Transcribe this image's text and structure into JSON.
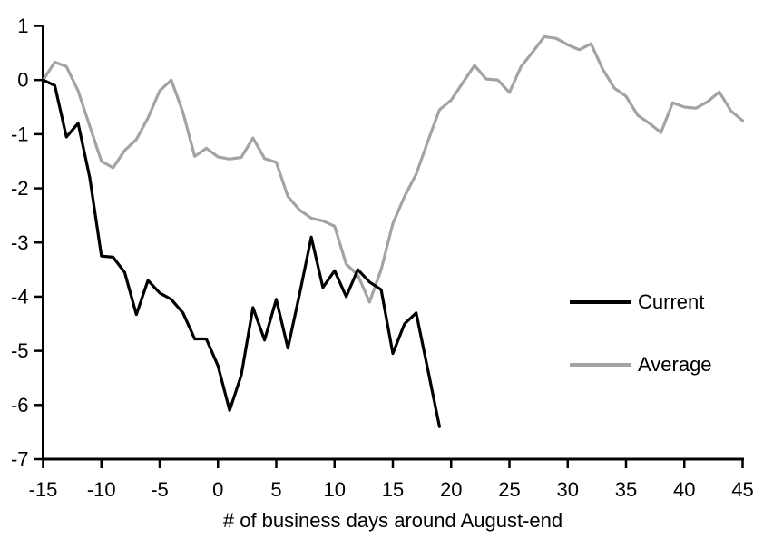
{
  "chart_data": {
    "type": "line",
    "title": "",
    "xlabel": "# of business days around August-end",
    "ylabel": "",
    "xlim": [
      -15,
      45
    ],
    "ylim": [
      -7,
      1
    ],
    "xticks": [
      -15,
      -10,
      -5,
      0,
      5,
      10,
      15,
      20,
      25,
      30,
      35,
      40,
      45
    ],
    "yticks": [
      1,
      0,
      -1,
      -2,
      -3,
      -4,
      -5,
      -6,
      -7
    ],
    "grid": false,
    "legend_position": "middle-right",
    "axis_color": "#000000",
    "background_color": "#ffffff",
    "series": [
      {
        "name": "Current",
        "color": "#000000",
        "x": [
          -15,
          -14,
          -13,
          -12,
          -11,
          -10,
          -9,
          -8,
          -7,
          -6,
          -5,
          -4,
          -3,
          -2,
          -1,
          0,
          1,
          2,
          3,
          4,
          5,
          6,
          7,
          8,
          9,
          10,
          11,
          12,
          13,
          14,
          15,
          16,
          17,
          18,
          19
        ],
        "values": [
          0,
          -0.1,
          -1.05,
          -0.8,
          -1.8,
          -3.25,
          -3.27,
          -3.55,
          -4.33,
          -3.7,
          -3.93,
          -4.05,
          -4.3,
          -4.78,
          -4.78,
          -5.28,
          -6.1,
          -5.45,
          -4.2,
          -4.8,
          -4.05,
          -4.95,
          -3.95,
          -2.9,
          -3.83,
          -3.52,
          -4.0,
          -3.5,
          -3.73,
          -3.87,
          -5.05,
          -4.5,
          -4.3,
          -5.35,
          -6.4
        ]
      },
      {
        "name": "Average",
        "color": "#a3a3a3",
        "x": [
          -15,
          -14,
          -13,
          -12,
          -11,
          -10,
          -9,
          -8,
          -7,
          -6,
          -5,
          -4,
          -3,
          -2,
          -1,
          0,
          1,
          2,
          3,
          4,
          5,
          6,
          7,
          8,
          9,
          10,
          11,
          12,
          13,
          14,
          15,
          16,
          17,
          18,
          19,
          20,
          21,
          22,
          23,
          24,
          25,
          26,
          27,
          28,
          29,
          30,
          31,
          32,
          33,
          34,
          35,
          36,
          37,
          38,
          39,
          40,
          41,
          42,
          43,
          44,
          45
        ],
        "values": [
          0,
          0.33,
          0.25,
          -0.2,
          -0.85,
          -1.5,
          -1.62,
          -1.3,
          -1.1,
          -0.7,
          -0.2,
          0.0,
          -0.6,
          -1.41,
          -1.26,
          -1.42,
          -1.46,
          -1.43,
          -1.07,
          -1.45,
          -1.52,
          -2.15,
          -2.4,
          -2.55,
          -2.6,
          -2.7,
          -3.4,
          -3.6,
          -4.1,
          -3.5,
          -2.65,
          -2.15,
          -1.74,
          -1.13,
          -0.55,
          -0.37,
          -0.05,
          0.27,
          0.02,
          0.0,
          -0.23,
          0.25,
          0.52,
          0.8,
          0.77,
          0.65,
          0.56,
          0.67,
          0.2,
          -0.15,
          -0.3,
          -0.65,
          -0.8,
          -0.97,
          -0.42,
          -0.5,
          -0.52,
          -0.4,
          -0.22,
          -0.57,
          -0.75
        ]
      }
    ]
  }
}
